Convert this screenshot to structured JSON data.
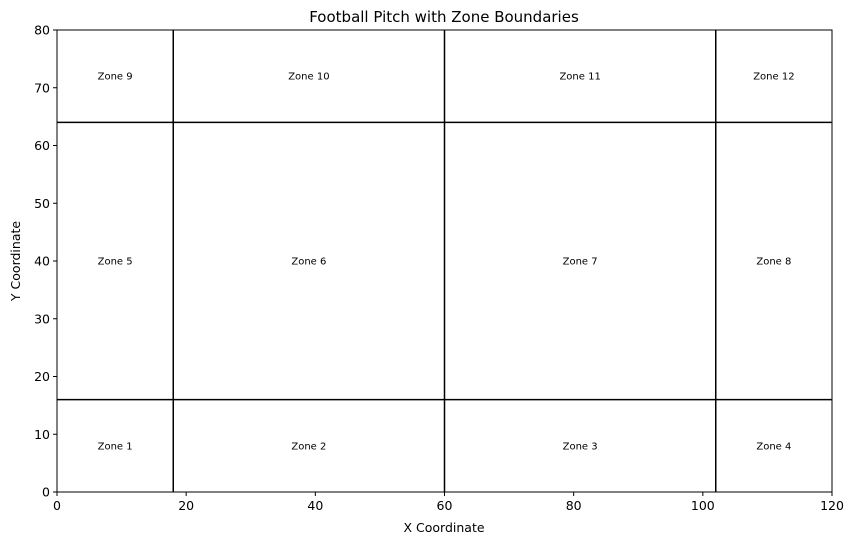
{
  "chart_data": {
    "type": "scatter",
    "title": "Football Pitch with Zone Boundaries",
    "xlabel": "X Coordinate",
    "ylabel": "Y Coordinate",
    "xlim": [
      0,
      120
    ],
    "ylim": [
      0,
      80
    ],
    "xticks": [
      0,
      20,
      40,
      60,
      80,
      100,
      120
    ],
    "yticks": [
      0,
      10,
      20,
      30,
      40,
      50,
      60,
      70,
      80
    ],
    "grid": false,
    "vertical_boundaries": [
      18,
      60,
      102
    ],
    "horizontal_boundaries": [
      16,
      64
    ],
    "zones": [
      {
        "name": "Zone 1",
        "x": 9,
        "y": 8
      },
      {
        "name": "Zone 2",
        "x": 39,
        "y": 8
      },
      {
        "name": "Zone 3",
        "x": 81,
        "y": 8
      },
      {
        "name": "Zone 4",
        "x": 111,
        "y": 8
      },
      {
        "name": "Zone 5",
        "x": 9,
        "y": 40
      },
      {
        "name": "Zone 6",
        "x": 39,
        "y": 40
      },
      {
        "name": "Zone 7",
        "x": 81,
        "y": 40
      },
      {
        "name": "Zone 8",
        "x": 111,
        "y": 40
      },
      {
        "name": "Zone 9",
        "x": 9,
        "y": 72
      },
      {
        "name": "Zone 10",
        "x": 39,
        "y": 72
      },
      {
        "name": "Zone 11",
        "x": 81,
        "y": 72
      },
      {
        "name": "Zone 12",
        "x": 111,
        "y": 72
      }
    ]
  }
}
